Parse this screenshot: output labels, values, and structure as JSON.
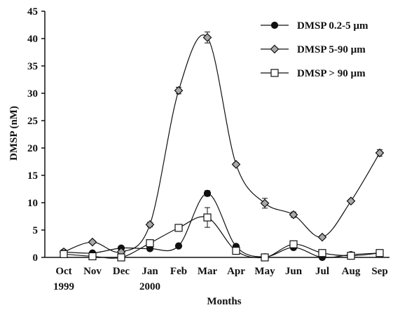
{
  "chart_data": {
    "type": "line",
    "x_label": "Months",
    "y_label": "DMSP  (nM)",
    "categories": [
      "Oct",
      "Nov",
      "Dec",
      "Jan",
      "Feb",
      "Mar",
      "Apr",
      "May",
      "Jun",
      "Jul",
      "Aug",
      "Sep"
    ],
    "years": [
      "1999",
      null,
      null,
      "2000",
      null,
      null,
      null,
      null,
      null,
      null,
      null,
      null
    ],
    "ylim": [
      0,
      45
    ],
    "yticks": [
      0,
      5,
      10,
      15,
      20,
      25,
      30,
      35,
      40,
      45
    ],
    "legend": "top-right",
    "series": [
      {
        "name": "DMSP 0.2-5 µm",
        "marker": "circle",
        "color": "#111111",
        "values": [
          1.0,
          0.8,
          1.7,
          1.6,
          2.1,
          11.7,
          2.0,
          0.1,
          1.8,
          0.0,
          0.5,
          0.8
        ],
        "errors": [
          0.2,
          0.2,
          0.2,
          0.2,
          0.3,
          0.5,
          0.3,
          0.1,
          0.2,
          0.1,
          0.2,
          0.2
        ]
      },
      {
        "name": "DMSP 5-90 µm",
        "marker": "diamond",
        "color": "#a8a8a8",
        "values": [
          1.0,
          2.8,
          1.0,
          6.0,
          30.5,
          40.2,
          17.0,
          9.9,
          7.8,
          3.7,
          10.3,
          19.1
        ],
        "errors": [
          0.2,
          0.3,
          0.2,
          0.4,
          0.6,
          1.0,
          0.3,
          0.9,
          0.5,
          0.3,
          0.3,
          0.6
        ]
      },
      {
        "name": "DMSP > 90 µm",
        "marker": "square",
        "color": "#ffffff",
        "values": [
          0.6,
          0.2,
          0.0,
          2.6,
          5.4,
          7.3,
          1.2,
          0.0,
          2.4,
          0.8,
          0.3,
          0.8
        ],
        "errors": [
          0.2,
          0.2,
          0.1,
          0.3,
          0.3,
          1.8,
          0.3,
          0.1,
          0.3,
          0.2,
          0.2,
          0.3
        ]
      }
    ]
  }
}
